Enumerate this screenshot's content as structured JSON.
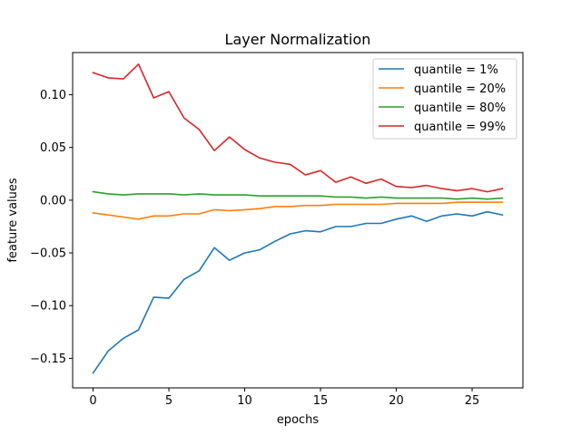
{
  "chart_data": {
    "type": "line",
    "title": "Layer Normalization",
    "xlabel": "epochs",
    "ylabel": "feature values",
    "xlim": [
      -1.35,
      28.35
    ],
    "ylim": [
      -0.178,
      0.14
    ],
    "xticks": [
      0,
      5,
      10,
      15,
      20,
      25
    ],
    "xtick_labels": [
      "0",
      "5",
      "10",
      "15",
      "20",
      "25"
    ],
    "yticks": [
      -0.15,
      -0.1,
      -0.05,
      0.0,
      0.05,
      0.1
    ],
    "ytick_labels": [
      "−0.15",
      "−0.10",
      "−0.05",
      "0.00",
      "0.05",
      "0.10"
    ],
    "grid": false,
    "legend_position": "upper right",
    "x": [
      0,
      1,
      2,
      3,
      4,
      5,
      6,
      7,
      8,
      9,
      10,
      11,
      12,
      13,
      14,
      15,
      16,
      17,
      18,
      19,
      20,
      21,
      22,
      23,
      24,
      25,
      26,
      27
    ],
    "series": [
      {
        "name": "quantile = 1%",
        "color": "#1f77b4",
        "values": [
          -0.164,
          -0.143,
          -0.131,
          -0.123,
          -0.092,
          -0.093,
          -0.075,
          -0.067,
          -0.045,
          -0.057,
          -0.05,
          -0.047,
          -0.039,
          -0.032,
          -0.029,
          -0.03,
          -0.025,
          -0.025,
          -0.022,
          -0.022,
          -0.018,
          -0.015,
          -0.02,
          -0.015,
          -0.013,
          -0.015,
          -0.011,
          -0.014
        ]
      },
      {
        "name": "quantile = 20%",
        "color": "#ff7f0e",
        "values": [
          -0.012,
          -0.014,
          -0.016,
          -0.018,
          -0.015,
          -0.015,
          -0.013,
          -0.013,
          -0.009,
          -0.01,
          -0.009,
          -0.008,
          -0.006,
          -0.006,
          -0.005,
          -0.005,
          -0.004,
          -0.004,
          -0.004,
          -0.004,
          -0.003,
          -0.003,
          -0.003,
          -0.003,
          -0.002,
          -0.002,
          -0.002,
          -0.002
        ]
      },
      {
        "name": "quantile = 80%",
        "color": "#2ca02c",
        "values": [
          0.008,
          0.006,
          0.005,
          0.006,
          0.006,
          0.006,
          0.005,
          0.006,
          0.005,
          0.005,
          0.005,
          0.004,
          0.004,
          0.004,
          0.004,
          0.004,
          0.003,
          0.003,
          0.002,
          0.003,
          0.002,
          0.002,
          0.002,
          0.002,
          0.001,
          0.002,
          0.001,
          0.002
        ]
      },
      {
        "name": "quantile = 99%",
        "color": "#d62728",
        "values": [
          0.121,
          0.116,
          0.115,
          0.129,
          0.097,
          0.103,
          0.078,
          0.067,
          0.047,
          0.06,
          0.048,
          0.04,
          0.036,
          0.034,
          0.024,
          0.028,
          0.017,
          0.022,
          0.016,
          0.02,
          0.013,
          0.012,
          0.014,
          0.011,
          0.009,
          0.011,
          0.008,
          0.011
        ]
      }
    ]
  }
}
